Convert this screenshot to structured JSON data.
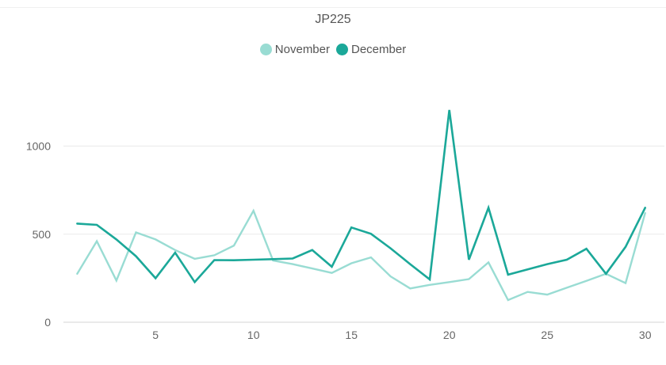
{
  "chart_data": {
    "type": "line",
    "title": "JP225",
    "xlabel": "",
    "ylabel": "",
    "x": [
      1,
      2,
      3,
      4,
      5,
      6,
      7,
      8,
      9,
      10,
      11,
      12,
      13,
      14,
      15,
      16,
      17,
      18,
      19,
      20,
      21,
      22,
      23,
      24,
      25,
      26,
      27,
      28,
      29,
      30
    ],
    "x_ticks": [
      5,
      10,
      15,
      20,
      25,
      30
    ],
    "y_ticks": [
      0,
      500,
      1000
    ],
    "xlim": [
      0,
      31
    ],
    "ylim": [
      0,
      1300
    ],
    "grid": true,
    "legend": "top-center",
    "series": [
      {
        "name": "November",
        "color": "#99dcd3",
        "values": [
          275,
          460,
          237,
          510,
          470,
          410,
          360,
          380,
          435,
          633,
          350,
          330,
          305,
          280,
          335,
          368,
          260,
          192,
          212,
          228,
          245,
          340,
          126,
          172,
          157,
          196,
          235,
          275,
          222,
          620
        ]
      },
      {
        "name": "December",
        "color": "#1ba899",
        "values": [
          560,
          553,
          470,
          375,
          250,
          395,
          228,
          353,
          352,
          355,
          358,
          362,
          410,
          315,
          538,
          502,
          420,
          330,
          243,
          1205,
          355,
          650,
          270,
          300,
          330,
          355,
          417,
          275,
          428,
          650
        ]
      }
    ]
  }
}
